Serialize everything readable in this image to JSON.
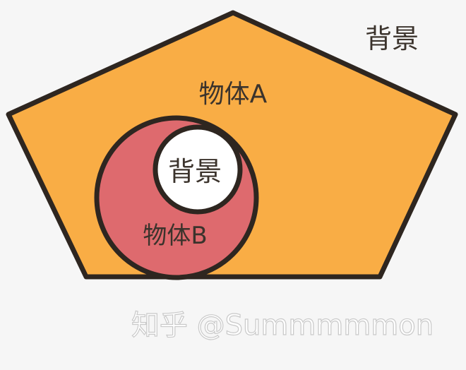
{
  "labels": {
    "outer_background": "背景",
    "object_a": "物体A",
    "object_b": "物体B",
    "inner_background": "背景"
  },
  "watermark": "知乎 @Summmmmon",
  "colors": {
    "canvas": "#f6f6f6",
    "object_a_fill": "#f9ad45",
    "object_b_fill": "#de6a6e",
    "hole_fill": "#ffffff",
    "outline": "#2e2620",
    "label_text": "#3b332c",
    "watermark_text": "#ffffff"
  }
}
